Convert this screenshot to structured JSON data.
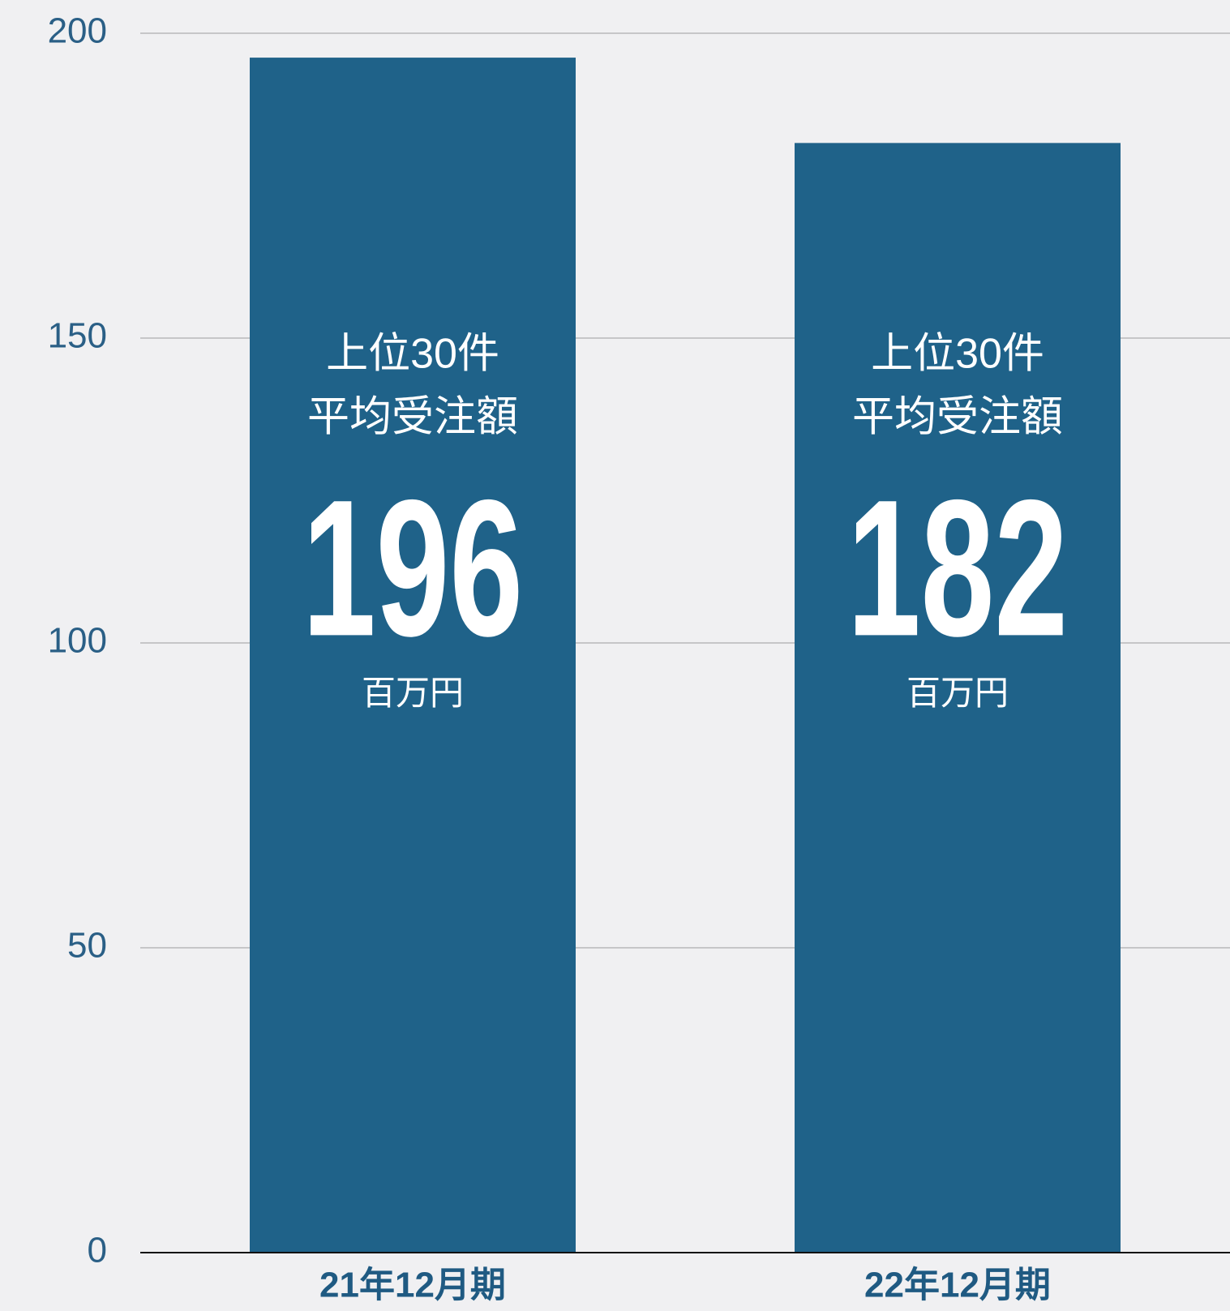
{
  "chart_data": {
    "type": "bar",
    "categories": [
      "21年12月期",
      "22年12月期"
    ],
    "values": [
      196,
      182
    ],
    "color": "#1f6289",
    "bar_text": {
      "line1": "上位30件",
      "line2": "平均受注額",
      "unit": "百万円"
    },
    "ylim": [
      0,
      200
    ],
    "yticks": [
      0,
      50,
      100,
      150,
      200
    ],
    "grid": true
  }
}
